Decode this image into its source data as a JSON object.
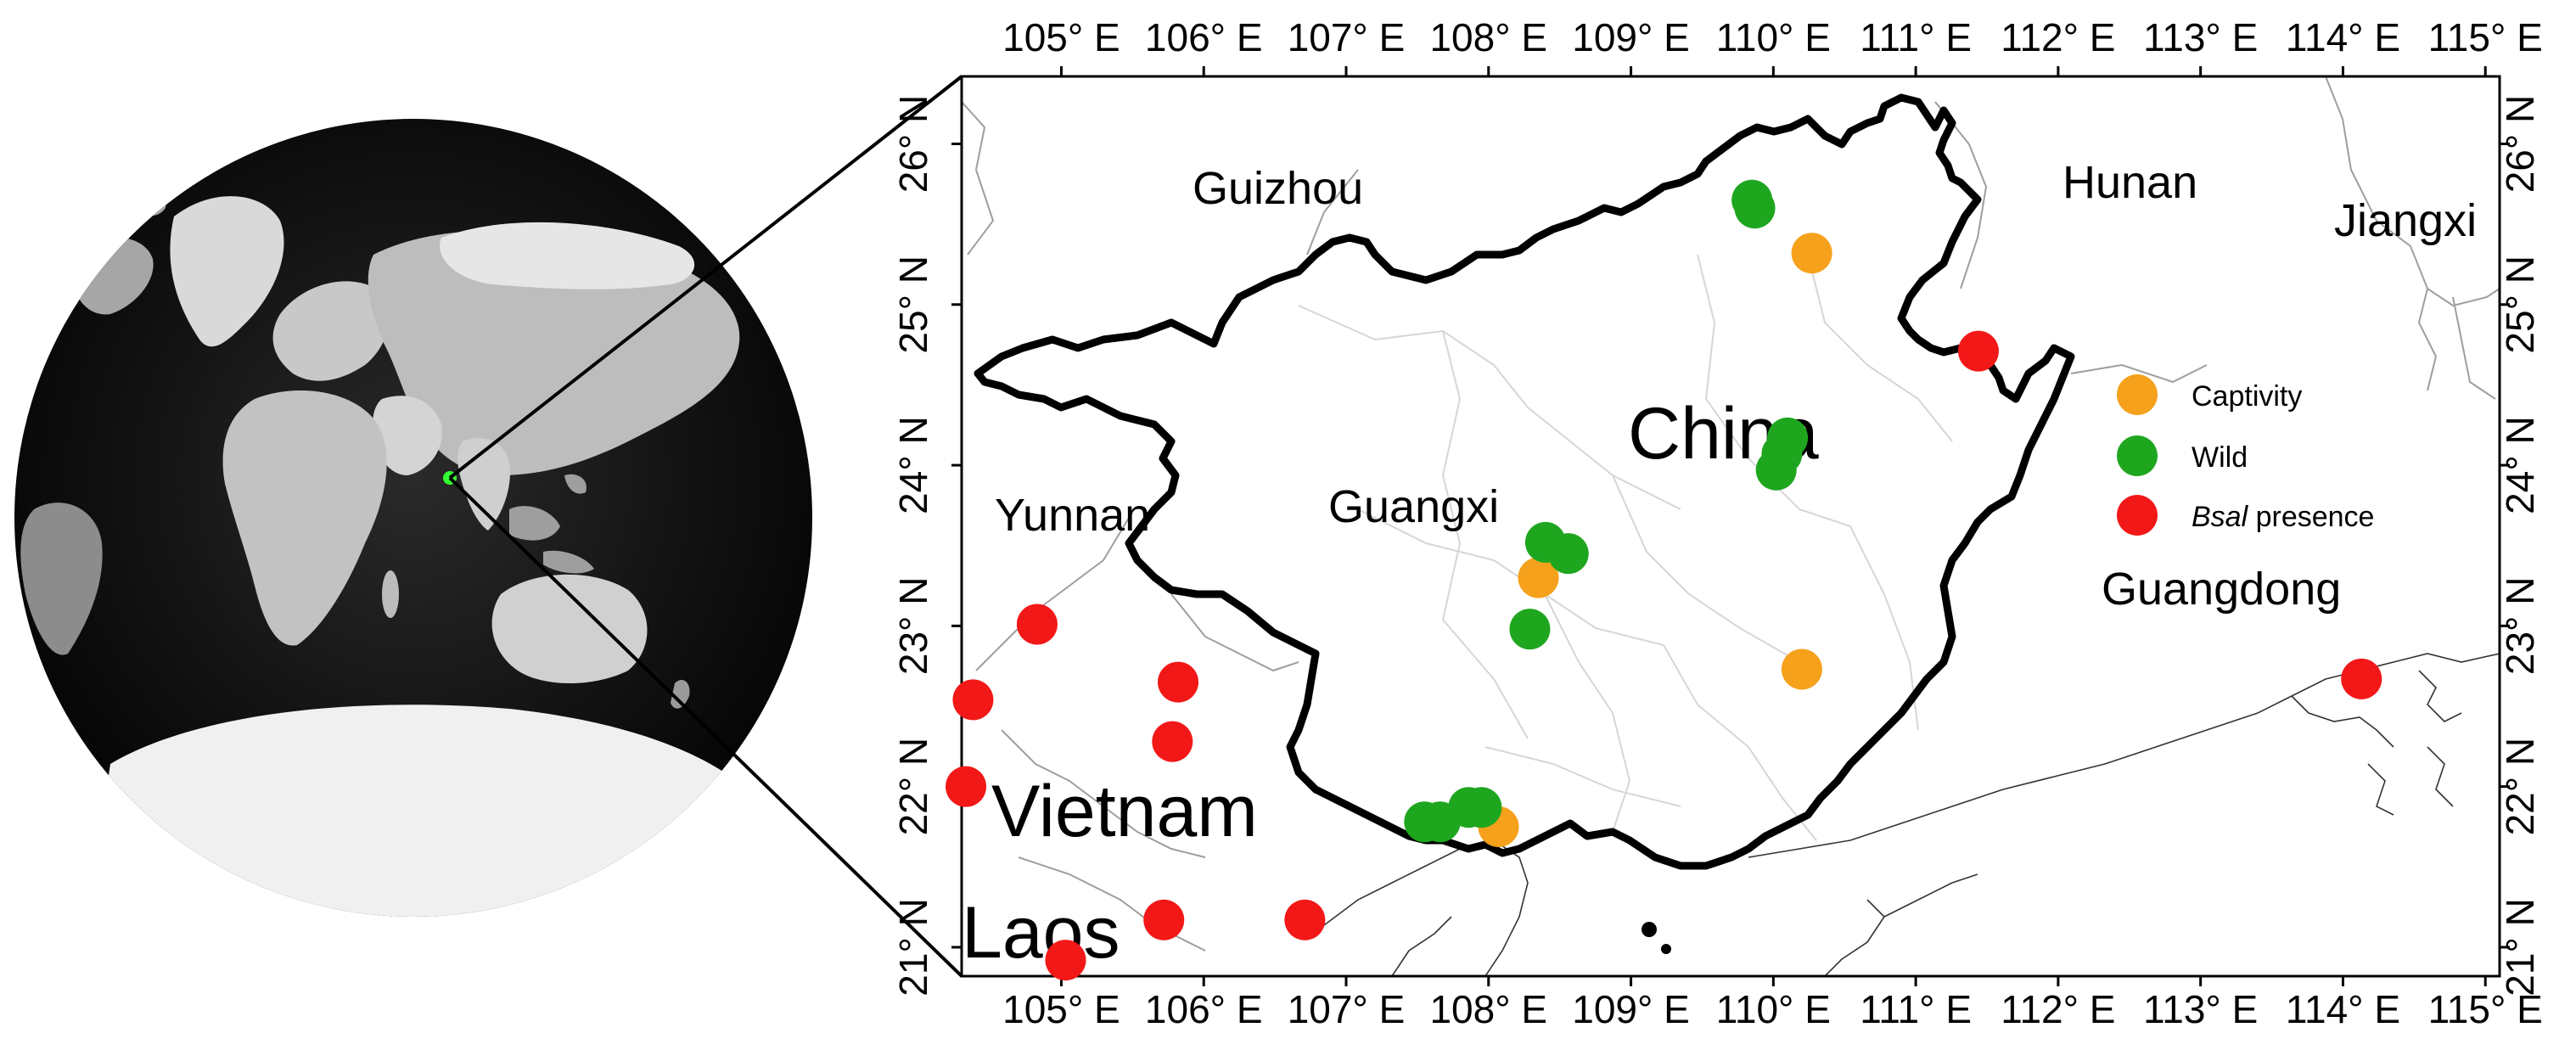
{
  "map": {
    "lon_range": [
      104.3,
      115.1
    ],
    "lat_range": [
      20.82,
      26.42
    ],
    "lon_ticks": [
      {
        "value": 105,
        "label": "105° E"
      },
      {
        "value": 106,
        "label": "106° E"
      },
      {
        "value": 107,
        "label": "107° E"
      },
      {
        "value": 108,
        "label": "108° E"
      },
      {
        "value": 109,
        "label": "109° E"
      },
      {
        "value": 110,
        "label": "110° E"
      },
      {
        "value": 111,
        "label": "111° E"
      },
      {
        "value": 112,
        "label": "112° E"
      },
      {
        "value": 113,
        "label": "113° E"
      },
      {
        "value": 114,
        "label": "114° E"
      },
      {
        "value": 115,
        "label": "115° E"
      }
    ],
    "lat_ticks": [
      {
        "value": 21,
        "label": "21° N"
      },
      {
        "value": 22,
        "label": "22° N"
      },
      {
        "value": 23,
        "label": "23° N"
      },
      {
        "value": 24,
        "label": "24° N"
      },
      {
        "value": 25,
        "label": "25° N"
      },
      {
        "value": 26,
        "label": "26° N"
      }
    ],
    "place_labels": {
      "guizhou": "Guizhou",
      "hunan": "Hunan",
      "jiangxi": "Jiangxi",
      "yunnan": "Yunnan",
      "guangxi": "Guangxi",
      "china": "China",
      "guangdong": "Guangdong",
      "vietnam": "Vietnam",
      "laos": "Laos"
    }
  },
  "legend": {
    "captivity": "Captivity",
    "wild": "Wild",
    "bsal_species": "Bsal",
    "bsal_suffix": "presence"
  },
  "colors": {
    "captivity": "#f5a11c",
    "wild": "#1fa61f",
    "bsal": "#f21818",
    "border": "#000000",
    "inset_highlight": "#33ff33"
  },
  "globe": {
    "highlight_marker": "green-dot"
  },
  "chart_data": {
    "type": "scatter",
    "series": [
      {
        "name": "Captivity",
        "points": [
          {
            "lon": 110.27,
            "lat": 25.32
          },
          {
            "lon": 108.35,
            "lat": 23.3
          },
          {
            "lon": 110.2,
            "lat": 22.73
          },
          {
            "lon": 108.07,
            "lat": 21.75
          }
        ]
      },
      {
        "name": "Wild",
        "points": [
          {
            "lon": 109.85,
            "lat": 25.65
          },
          {
            "lon": 109.87,
            "lat": 25.6
          },
          {
            "lon": 110.1,
            "lat": 24.17
          },
          {
            "lon": 110.02,
            "lat": 23.97
          },
          {
            "lon": 110.06,
            "lat": 24.07
          },
          {
            "lon": 108.4,
            "lat": 23.52
          },
          {
            "lon": 108.56,
            "lat": 23.45
          },
          {
            "lon": 108.29,
            "lat": 22.98
          },
          {
            "lon": 107.55,
            "lat": 21.78
          },
          {
            "lon": 107.66,
            "lat": 21.78
          },
          {
            "lon": 107.86,
            "lat": 21.87
          },
          {
            "lon": 107.95,
            "lat": 21.87
          }
        ]
      },
      {
        "name": "Bsal presence",
        "points": [
          {
            "lon": 111.44,
            "lat": 24.71
          },
          {
            "lon": 114.13,
            "lat": 22.67
          },
          {
            "lon": 104.83,
            "lat": 23.01
          },
          {
            "lon": 104.38,
            "lat": 22.54
          },
          {
            "lon": 105.82,
            "lat": 22.65
          },
          {
            "lon": 105.78,
            "lat": 22.28
          },
          {
            "lon": 104.33,
            "lat": 22.0
          },
          {
            "lon": 105.72,
            "lat": 21.17
          },
          {
            "lon": 106.71,
            "lat": 21.17
          },
          {
            "lon": 105.03,
            "lat": 20.92
          }
        ]
      }
    ]
  }
}
